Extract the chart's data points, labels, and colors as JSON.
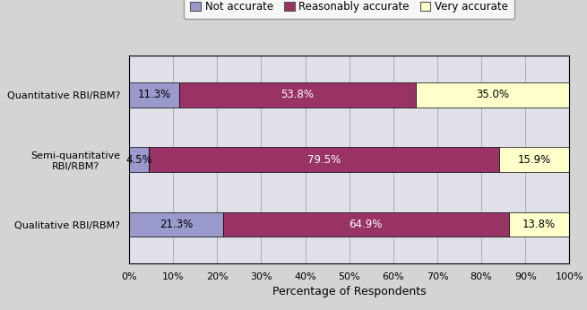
{
  "categories": [
    "Qualitative RBI/RBM?",
    "Semi-quantitative\nRBI/RBM?",
    "Quantitative RBI/RBM?"
  ],
  "not_accurate": [
    21.3,
    4.5,
    11.3
  ],
  "reasonably_accurate": [
    64.9,
    79.5,
    53.8
  ],
  "very_accurate": [
    13.8,
    15.9,
    35.0
  ],
  "not_accurate_color": "#9999cc",
  "reasonably_accurate_color": "#993366",
  "very_accurate_color": "#ffffcc",
  "background_color": "#d4d4d4",
  "plot_background_color": "#e0e0e8",
  "xlabel": "Percentage of Respondents",
  "legend_labels": [
    "Not accurate",
    "Reasonably accurate",
    "Very accurate"
  ],
  "bar_height": 0.38,
  "xlim": [
    0,
    100
  ],
  "xticks": [
    0,
    10,
    20,
    30,
    40,
    50,
    60,
    70,
    80,
    90,
    100
  ],
  "xtick_labels": [
    "0%",
    "10%",
    "20%",
    "30%",
    "40%",
    "50%",
    "60%",
    "70%",
    "80%",
    "90%",
    "100%"
  ],
  "label_fontsize": 8.5,
  "tick_fontsize": 8,
  "xlabel_fontsize": 9,
  "legend_fontsize": 8.5,
  "grid_color": "#b0b0b8"
}
